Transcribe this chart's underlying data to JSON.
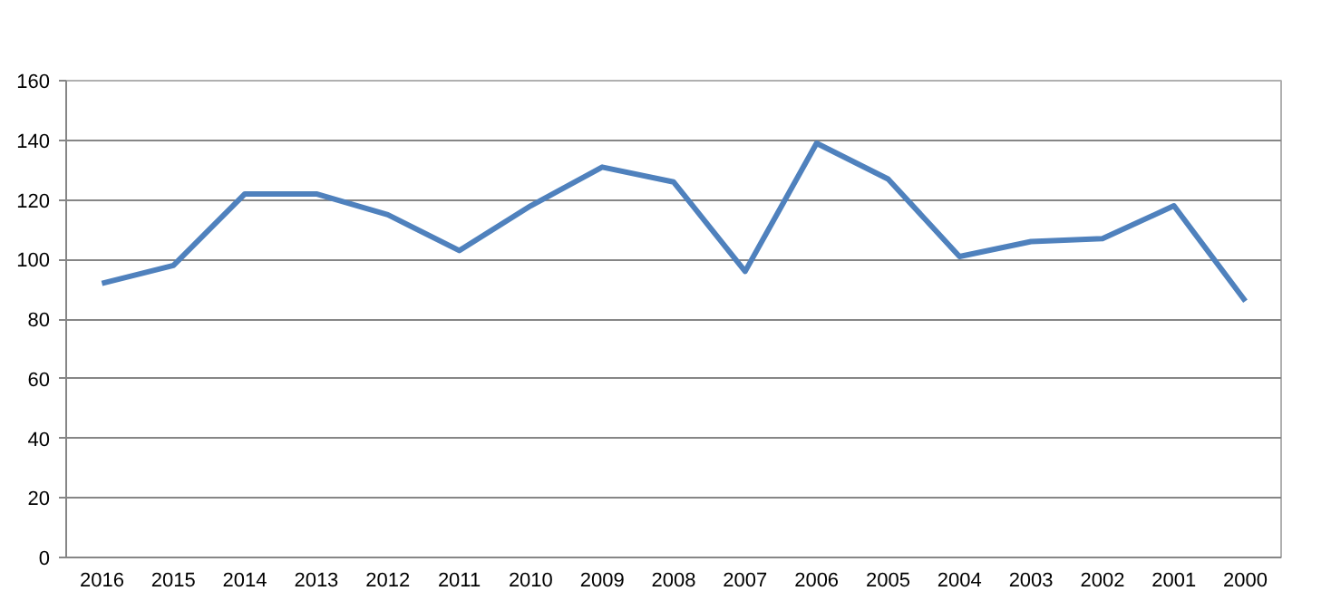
{
  "chart_data": {
    "type": "line",
    "categories": [
      "2016",
      "2015",
      "2014",
      "2013",
      "2012",
      "2011",
      "2010",
      "2009",
      "2008",
      "2007",
      "2006",
      "2005",
      "2004",
      "2003",
      "2002",
      "2001",
      "2000"
    ],
    "series": [
      {
        "color": "#4f81bd",
        "values": [
          92,
          98,
          122,
          122,
          115,
          103,
          118,
          131,
          126,
          96,
          139,
          127,
          101,
          106,
          107,
          118,
          86
        ]
      }
    ],
    "ylim": [
      0,
      160
    ],
    "yticks": [
      0,
      20,
      40,
      60,
      80,
      100,
      120,
      140,
      160
    ],
    "grid": "y"
  }
}
